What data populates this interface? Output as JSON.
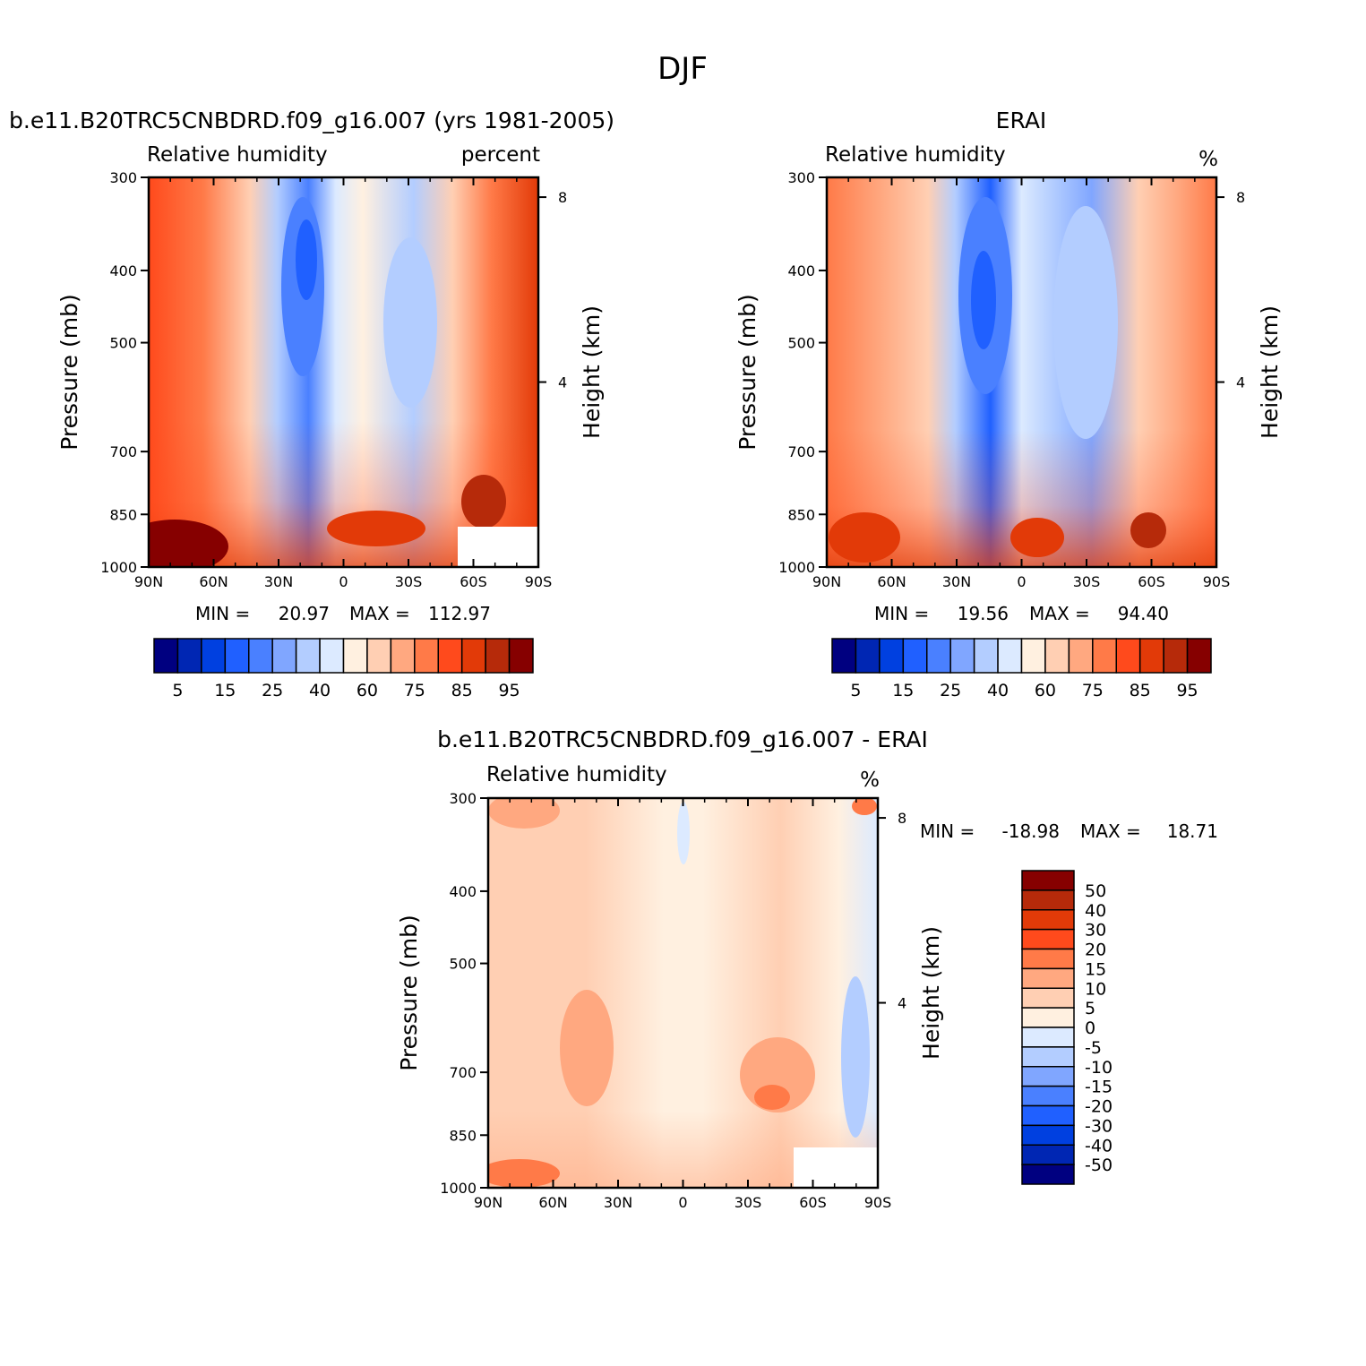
{
  "figure": {
    "title": "DJF"
  },
  "colors": {
    "rh_levels": [
      "#000080",
      "#0026b3",
      "#0040e0",
      "#2060ff",
      "#4a80ff",
      "#80a6ff",
      "#b3cdff",
      "#dceaff",
      "#fff0e0",
      "#ffcfb3",
      "#ffa880",
      "#ff7a48",
      "#ff4a1c",
      "#e23a08",
      "#b62a0a",
      "#860000"
    ],
    "diff_levels": [
      "#000080",
      "#0026b3",
      "#0040e0",
      "#2060ff",
      "#4a80ff",
      "#80a6ff",
      "#b3cdff",
      "#dceaff",
      "#fff0e0",
      "#ffcfb3",
      "#ffa880",
      "#ff7a48",
      "#ff4a1c",
      "#e23a08",
      "#b62a0a",
      "#860000"
    ]
  },
  "chart_data": [
    {
      "type": "heatmap",
      "id": "model",
      "title": "b.e11.B20TRC5CNBDRD.f09_g16.007 (yrs 1981-2005)",
      "left_label": "Relative humidity",
      "right_label": "percent",
      "xlabel": "",
      "ylabel": "Pressure (mb)",
      "ylabel_right": "Height (km)",
      "x_ticks": [
        "90N",
        "60N",
        "30N",
        "0",
        "30S",
        "60S",
        "90S"
      ],
      "y_ticks": [
        "300",
        "400",
        "500",
        "700",
        "850",
        "1000"
      ],
      "y2_ticks": [
        "8",
        "4"
      ],
      "xlim": [
        90,
        -90
      ],
      "ylim": [
        300,
        1000
      ],
      "stats": {
        "min_label": "MIN =",
        "min": "20.97",
        "max_label": "MAX =",
        "max": "112.97"
      },
      "colorbar_labels": [
        "5",
        "15",
        "25",
        "40",
        "60",
        "75",
        "85",
        "95"
      ]
    },
    {
      "type": "heatmap",
      "id": "obs",
      "title": "ERAI",
      "left_label": "Relative humidity",
      "right_label": "%",
      "xlabel": "",
      "ylabel": "Pressure (mb)",
      "ylabel_right": "Height (km)",
      "x_ticks": [
        "90N",
        "60N",
        "30N",
        "0",
        "30S",
        "60S",
        "90S"
      ],
      "y_ticks": [
        "300",
        "400",
        "500",
        "700",
        "850",
        "1000"
      ],
      "y2_ticks": [
        "8",
        "4"
      ],
      "xlim": [
        90,
        -90
      ],
      "ylim": [
        300,
        1000
      ],
      "stats": {
        "min_label": "MIN =",
        "min": "19.56",
        "max_label": "MAX =",
        "max": "94.40"
      },
      "colorbar_labels": [
        "5",
        "15",
        "25",
        "40",
        "60",
        "75",
        "85",
        "95"
      ]
    },
    {
      "type": "heatmap",
      "id": "diff",
      "title": "b.e11.B20TRC5CNBDRD.f09_g16.007 - ERAI",
      "left_label": "Relative humidity",
      "right_label": "%",
      "xlabel": "",
      "ylabel": "Pressure (mb)",
      "ylabel_right": "Height (km)",
      "x_ticks": [
        "90N",
        "60N",
        "30N",
        "0",
        "30S",
        "60S",
        "90S"
      ],
      "y_ticks": [
        "300",
        "400",
        "500",
        "700",
        "850",
        "1000"
      ],
      "y2_ticks": [
        "8",
        "4"
      ],
      "xlim": [
        90,
        -90
      ],
      "ylim": [
        300,
        1000
      ],
      "stats": {
        "min_label": "MIN =",
        "min": "-18.98",
        "max_label": "MAX =",
        "max": "18.71"
      },
      "colorbar_labels": [
        "50",
        "40",
        "30",
        "20",
        "15",
        "10",
        "5",
        "0",
        "-5",
        "-10",
        "-15",
        "-20",
        "-30",
        "-40",
        "-50"
      ]
    }
  ]
}
